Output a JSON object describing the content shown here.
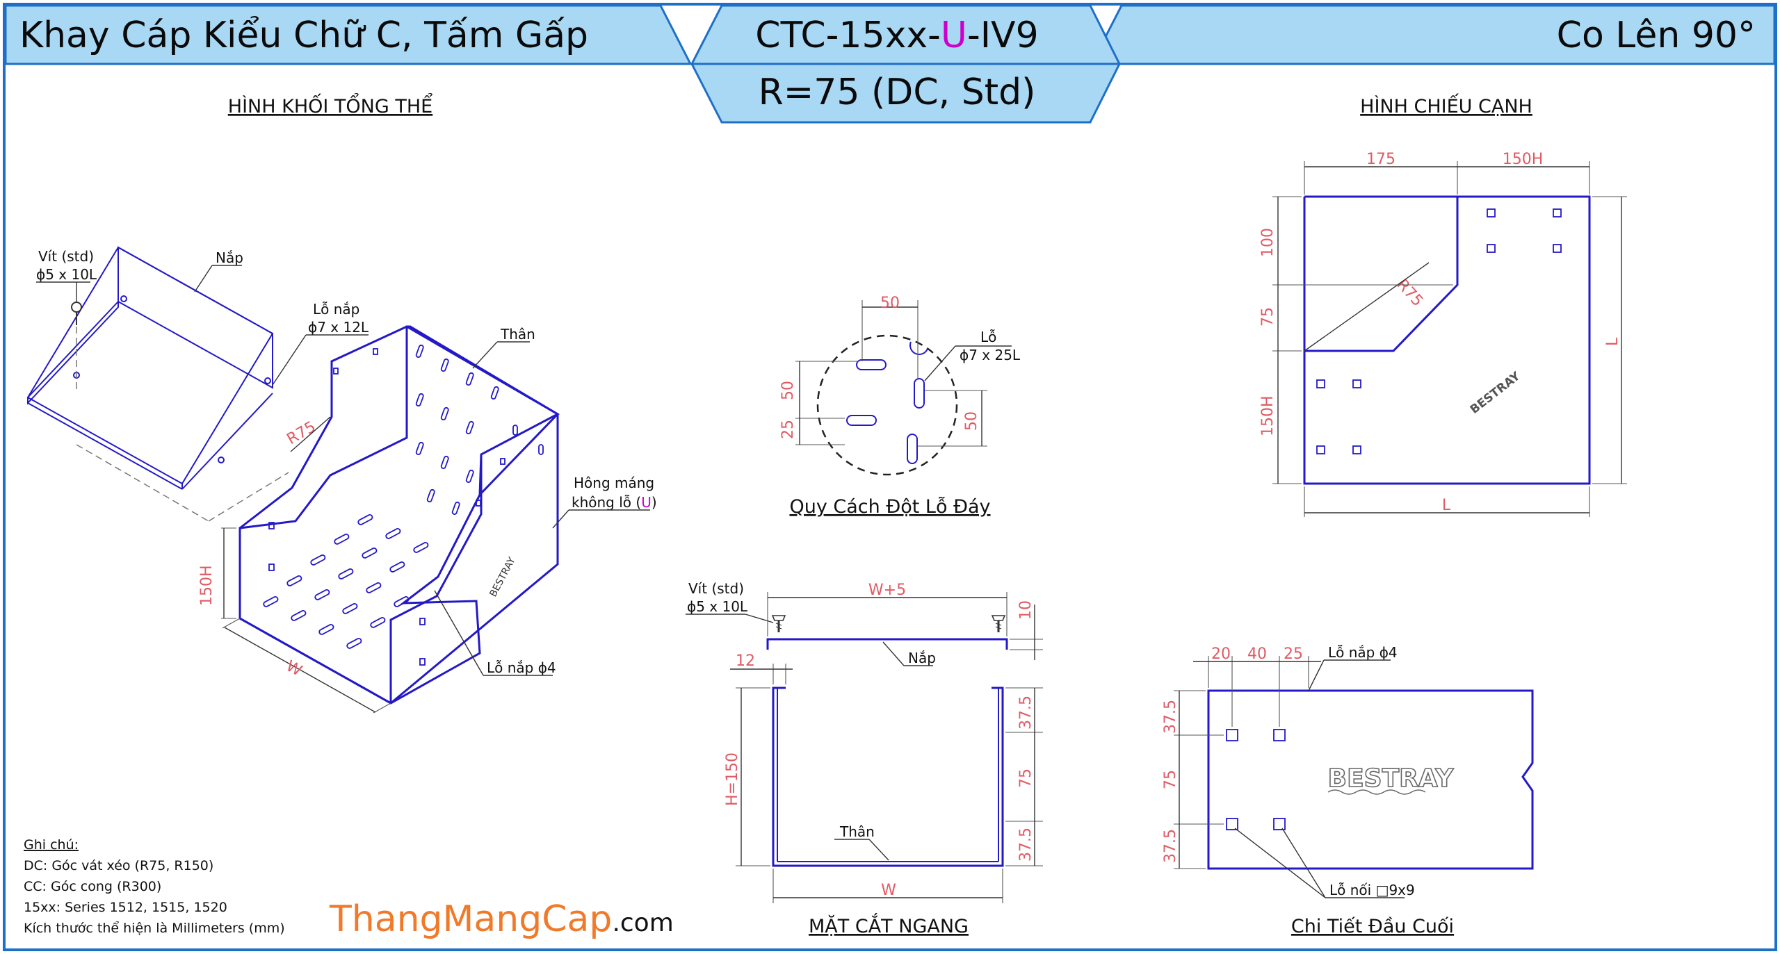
{
  "header": {
    "left_title": "Khay Cáp Kiểu Chữ C, Tấm Gấp",
    "code_prefix": "CTC-15xx-",
    "code_highlight": "U",
    "code_suffix": "-IV9",
    "radius_line": "R=75 (DC, Std)",
    "right_title": "Co Lên 90°"
  },
  "colors": {
    "header_fill": "#a9d8f5",
    "header_stroke": "#1e6fc8",
    "drawing_lines": "#2319c8",
    "dimension_text": "#e05a63",
    "highlight": "#cc00cc",
    "brand_orange": "#f07a2a"
  },
  "views": {
    "iso_title": "HÌNH KHỐI TỔNG THỂ",
    "side_title": "HÌNH CHIẾU CẠNH",
    "hole_title": "Quy Cách Đột Lỗ Đáy",
    "section_title": "MẶT CẮT NGANG",
    "end_title": "Chi Tiết Đầu Cuối"
  },
  "iso_labels": {
    "screw_1": "Vít (std)",
    "screw_2": "ϕ5 x 10L",
    "cover": "Nắp",
    "cover_hole_1": "Lỗ nắp",
    "cover_hole_2": "ϕ7 x 12L",
    "body": "Thân",
    "radius": "R75",
    "side_1": "Hông máng",
    "side_2a": "không lỗ (",
    "side_2b": "U",
    "side_2c": ")",
    "height": "150H",
    "width": "W",
    "cover_hole_small": "Lỗ nắp ϕ4",
    "brand": "BESTRAY"
  },
  "side_dims": {
    "top_a": "175",
    "top_b": "150H",
    "left_a": "100",
    "left_b": "75",
    "left_c": "150H",
    "radius": "R75",
    "right": "L",
    "bottom": "L",
    "brand": "BESTRAY"
  },
  "hole_dims": {
    "top": "50",
    "left_a": "50",
    "left_b": "25",
    "right": "50",
    "hole_1": "Lỗ",
    "hole_2": "ϕ7 x 25L"
  },
  "section_dims": {
    "screw_1": "Vít (std)",
    "screw_2": "ϕ5 x 10L",
    "top": "W+5",
    "right_top": "10",
    "lip": "12",
    "cover": "Nắp",
    "height": "H=150",
    "right_a": "37.5",
    "right_b": "75",
    "right_c": "37.5",
    "body": "Thân",
    "bottom": "W"
  },
  "end_dims": {
    "top_a": "20",
    "top_b": "40",
    "top_c": "25",
    "cover_hole": "Lỗ nắp ϕ4",
    "left_a": "37.5",
    "left_b": "75",
    "left_c": "37.5",
    "brand": "BESTRAY",
    "joint_hole": "Lỗ nối □9x9"
  },
  "notes": {
    "heading": "Ghi chú:",
    "line_1": "DC: Góc vát xéo (R75, R150)",
    "line_2": "CC: Góc cong (R300)",
    "line_3": "15xx: Series 1512, 1515, 1520",
    "line_4": "Kích thước thể hiện là Millimeters (mm)"
  },
  "footer": {
    "brand": "ThangMangCap",
    "domain": ".com"
  }
}
